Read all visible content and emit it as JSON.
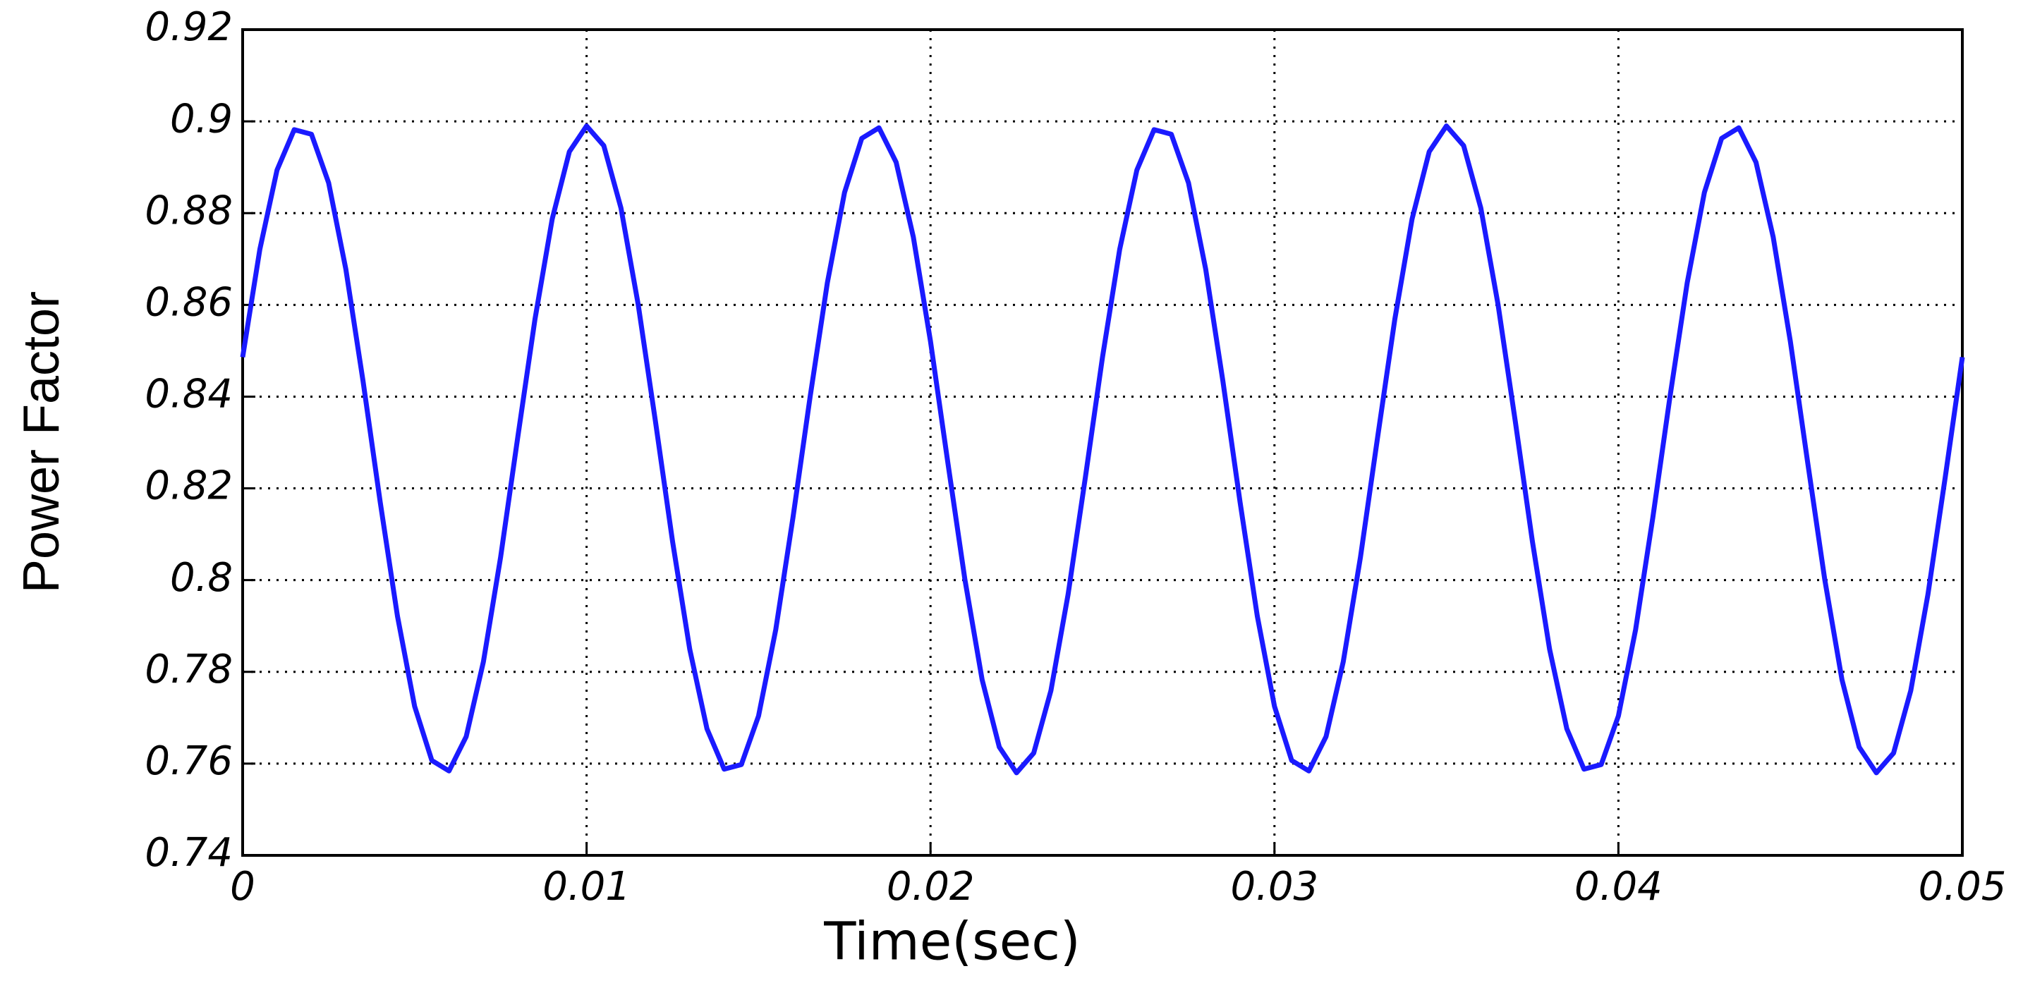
{
  "chart_data": {
    "type": "line",
    "xlabel": "Time(sec)",
    "ylabel": "Power Factor",
    "x": [
      0,
      0.0005,
      0.001,
      0.0015,
      0.002,
      0.0025,
      0.003,
      0.0035,
      0.004,
      0.0045,
      0.005,
      0.0055,
      0.006,
      0.0065,
      0.007,
      0.0075,
      0.008,
      0.0085,
      0.009,
      0.0095,
      0.01,
      0.0105,
      0.011,
      0.0115,
      0.012,
      0.0125,
      0.013,
      0.0135,
      0.014,
      0.0145,
      0.015,
      0.0155,
      0.016,
      0.0165,
      0.017,
      0.0175,
      0.018,
      0.0185,
      0.019,
      0.0195,
      0.02,
      0.0205,
      0.021,
      0.0215,
      0.022,
      0.0225,
      0.023,
      0.0235,
      0.024,
      0.0245,
      0.025,
      0.0255,
      0.026,
      0.0265,
      0.027,
      0.0275,
      0.028,
      0.0285,
      0.029,
      0.0295,
      0.03,
      0.0305,
      0.031,
      0.0315,
      0.032,
      0.0325,
      0.033,
      0.0335,
      0.034,
      0.0345,
      0.035,
      0.0355,
      0.036,
      0.0365,
      0.037,
      0.0375,
      0.038,
      0.0385,
      0.039,
      0.0395,
      0.04,
      0.0405,
      0.041,
      0.0415,
      0.042,
      0.0425,
      0.043,
      0.0435,
      0.044,
      0.0445,
      0.045,
      0.0455,
      0.046,
      0.0465,
      0.047,
      0.0475,
      0.048,
      0.0485,
      0.049,
      0.0495,
      0.05
    ],
    "series": [
      {
        "name": "Power Factor",
        "color": "#1a1aff",
        "values": [
          0.8486,
          0.8721,
          0.8894,
          0.8982,
          0.8972,
          0.8866,
          0.8678,
          0.8434,
          0.817,
          0.7922,
          0.7725,
          0.7607,
          0.7584,
          0.7659,
          0.7822,
          0.805,
          0.8312,
          0.8569,
          0.8787,
          0.8934,
          0.899,
          0.8947,
          0.8811,
          0.8601,
          0.8347,
          0.8084,
          0.7849,
          0.7676,
          0.7588,
          0.7598,
          0.7704,
          0.7892,
          0.8136,
          0.84,
          0.8648,
          0.8845,
          0.8963,
          0.8986,
          0.8911,
          0.8748,
          0.852,
          0.8258,
          0.8001,
          0.7783,
          0.7636,
          0.758,
          0.7623,
          0.7759,
          0.7969,
          0.8223,
          0.8486,
          0.8721,
          0.8894,
          0.8982,
          0.8972,
          0.8866,
          0.8678,
          0.8434,
          0.817,
          0.7922,
          0.7725,
          0.7607,
          0.7584,
          0.7659,
          0.7822,
          0.805,
          0.8312,
          0.8569,
          0.8787,
          0.8934,
          0.899,
          0.8947,
          0.8811,
          0.8601,
          0.8347,
          0.8084,
          0.7849,
          0.7676,
          0.7588,
          0.7598,
          0.7704,
          0.7892,
          0.8136,
          0.84,
          0.8648,
          0.8845,
          0.8963,
          0.8986,
          0.8911,
          0.8748,
          0.852,
          0.8258,
          0.8001,
          0.7783,
          0.7636,
          0.758,
          0.7623,
          0.7759,
          0.7969,
          0.8223,
          0.8486
        ]
      }
    ],
    "xlim": [
      0,
      0.05
    ],
    "xticks": [
      0,
      0.01,
      0.02,
      0.03,
      0.04,
      0.05
    ],
    "ylim": [
      0.74,
      0.92
    ],
    "yticks": [
      0.74,
      0.76,
      0.78,
      0.8,
      0.82,
      0.84,
      0.86,
      0.88,
      0.9,
      0.92
    ],
    "grid": true
  }
}
